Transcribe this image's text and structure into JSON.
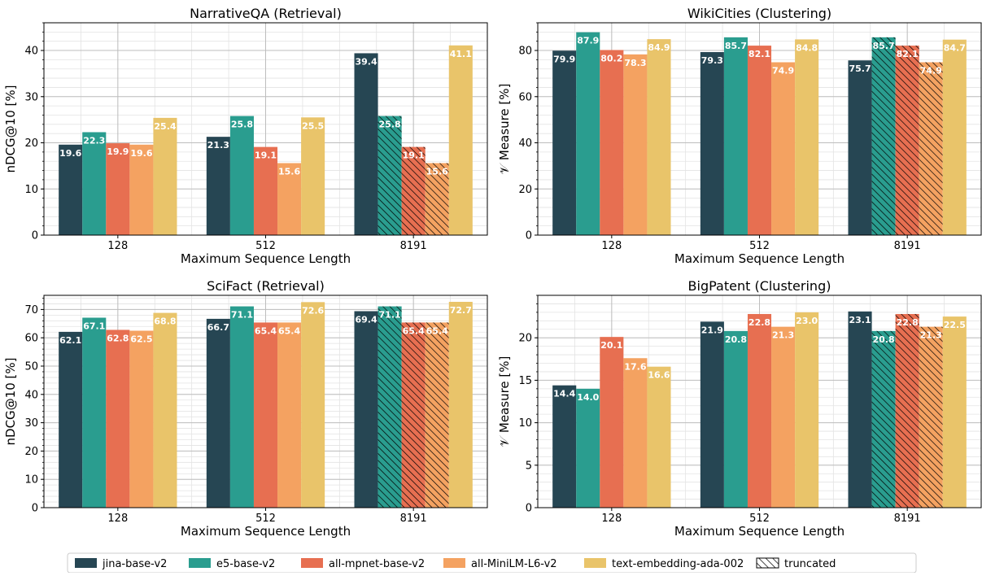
{
  "colors": {
    "jina-base-v2": "#264653",
    "e5-base-v2": "#2a9d8f",
    "all-mpnet-base-v2": "#e76f51",
    "all-MiniLM-L6-v2": "#f4a261",
    "text-embedding-ada-002": "#e9c46a",
    "grid_major": "#bdbdbd",
    "grid_minor": "#e3e3e3",
    "axis": "#000000"
  },
  "legend": {
    "position": "bottom-center",
    "items": [
      {
        "label": "jina-base-v2",
        "color_key": "jina-base-v2"
      },
      {
        "label": "e5-base-v2",
        "color_key": "e5-base-v2"
      },
      {
        "label": "all-mpnet-base-v2",
        "color_key": "all-mpnet-base-v2"
      },
      {
        "label": "all-MiniLM-L6-v2",
        "color_key": "all-MiniLM-L6-v2"
      },
      {
        "label": "text-embedding-ada-002",
        "color_key": "text-embedding-ada-002"
      },
      {
        "label": "truncated",
        "hatched": true
      }
    ]
  },
  "chart_data": [
    {
      "type": "bar",
      "title": "NarrativeQA (Retrieval)",
      "xlabel": "Maximum Sequence Length",
      "ylabel": "nDCG@10 [%]",
      "ylim": [
        0,
        46
      ],
      "yticks": [
        0,
        10,
        20,
        30,
        40
      ],
      "grid": true,
      "categories": [
        "128",
        "512",
        "8191"
      ],
      "series": [
        {
          "name": "jina-base-v2",
          "values": [
            19.6,
            21.3,
            39.4
          ],
          "labels": [
            "19.6",
            "21.3",
            "39.4"
          ],
          "truncated": [
            false,
            false,
            false
          ]
        },
        {
          "name": "e5-base-v2",
          "values": [
            22.3,
            25.8,
            25.8
          ],
          "labels": [
            "22.3",
            "25.8",
            "25.8"
          ],
          "truncated": [
            false,
            false,
            true
          ]
        },
        {
          "name": "all-mpnet-base-v2",
          "values": [
            19.9,
            19.1,
            19.1
          ],
          "labels": [
            "19.9",
            "19.1",
            "19.1"
          ],
          "truncated": [
            false,
            false,
            true
          ]
        },
        {
          "name": "all-MiniLM-L6-v2",
          "values": [
            19.6,
            15.6,
            15.6
          ],
          "labels": [
            "19.6",
            "15.6",
            "15.6"
          ],
          "truncated": [
            false,
            false,
            true
          ]
        },
        {
          "name": "text-embedding-ada-002",
          "values": [
            25.4,
            25.5,
            41.1
          ],
          "labels": [
            "25.4",
            "25.5",
            "41.1"
          ],
          "truncated": [
            false,
            false,
            false
          ]
        }
      ]
    },
    {
      "type": "bar",
      "title": "WikiCities (Clustering)",
      "xlabel": "Maximum Sequence Length",
      "ylabel": "𝒱 Measure [%]",
      "ylim": [
        0,
        92
      ],
      "yticks": [
        0,
        20,
        40,
        60,
        80
      ],
      "grid": true,
      "categories": [
        "128",
        "512",
        "8191"
      ],
      "series": [
        {
          "name": "jina-base-v2",
          "values": [
            79.9,
            79.3,
            75.7
          ],
          "labels": [
            "79.9",
            "79.3",
            "75.7"
          ],
          "truncated": [
            false,
            false,
            false
          ]
        },
        {
          "name": "e5-base-v2",
          "values": [
            87.9,
            85.7,
            85.7
          ],
          "labels": [
            "87.9",
            "85.7",
            "85.7"
          ],
          "truncated": [
            false,
            false,
            true
          ]
        },
        {
          "name": "all-mpnet-base-v2",
          "values": [
            80.2,
            82.1,
            82.1
          ],
          "labels": [
            "80.2",
            "82.1",
            "82.1"
          ],
          "truncated": [
            false,
            false,
            true
          ]
        },
        {
          "name": "all-MiniLM-L6-v2",
          "values": [
            78.3,
            74.9,
            74.9
          ],
          "labels": [
            "78.3",
            "74.9",
            "74.9"
          ],
          "truncated": [
            false,
            false,
            true
          ]
        },
        {
          "name": "text-embedding-ada-002",
          "values": [
            84.9,
            84.8,
            84.7
          ],
          "labels": [
            "84.9",
            "84.8",
            "84.7"
          ],
          "truncated": [
            false,
            false,
            false
          ]
        }
      ]
    },
    {
      "type": "bar",
      "title": "SciFact (Retrieval)",
      "xlabel": "Maximum Sequence Length",
      "ylabel": "nDCG@10 [%]",
      "ylim": [
        0,
        75
      ],
      "yticks": [
        0,
        10,
        20,
        30,
        40,
        50,
        60,
        70
      ],
      "grid": true,
      "categories": [
        "128",
        "512",
        "8191"
      ],
      "series": [
        {
          "name": "jina-base-v2",
          "values": [
            62.1,
            66.7,
            69.4
          ],
          "labels": [
            "62.1",
            "66.7",
            "69.4"
          ],
          "truncated": [
            false,
            false,
            false
          ]
        },
        {
          "name": "e5-base-v2",
          "values": [
            67.1,
            71.1,
            71.1
          ],
          "labels": [
            "67.1",
            "71.1",
            "71.1"
          ],
          "truncated": [
            false,
            false,
            true
          ]
        },
        {
          "name": "all-mpnet-base-v2",
          "values": [
            62.8,
            65.4,
            65.4
          ],
          "labels": [
            "62.8",
            "65.4",
            "65.4"
          ],
          "truncated": [
            false,
            false,
            true
          ]
        },
        {
          "name": "all-MiniLM-L6-v2",
          "values": [
            62.5,
            65.4,
            65.4
          ],
          "labels": [
            "62.5",
            "65.4",
            "65.4"
          ],
          "truncated": [
            false,
            false,
            true
          ]
        },
        {
          "name": "text-embedding-ada-002",
          "values": [
            68.8,
            72.6,
            72.7
          ],
          "labels": [
            "68.8",
            "72.6",
            "72.7"
          ],
          "truncated": [
            false,
            false,
            false
          ]
        }
      ]
    },
    {
      "type": "bar",
      "title": "BigPatent (Clustering)",
      "xlabel": "Maximum Sequence Length",
      "ylabel": "𝒱 Measure [%]",
      "ylim": [
        0,
        25
      ],
      "yticks": [
        0,
        5,
        10,
        15,
        20
      ],
      "grid": true,
      "categories": [
        "128",
        "512",
        "8191"
      ],
      "series": [
        {
          "name": "jina-base-v2",
          "values": [
            14.4,
            21.9,
            23.1
          ],
          "labels": [
            "14.4",
            "21.9",
            "23.1"
          ],
          "truncated": [
            false,
            false,
            false
          ]
        },
        {
          "name": "e5-base-v2",
          "values": [
            14.0,
            20.8,
            20.8
          ],
          "labels": [
            "14.0",
            "20.8",
            "20.8"
          ],
          "truncated": [
            false,
            false,
            true
          ]
        },
        {
          "name": "all-mpnet-base-v2",
          "values": [
            20.1,
            22.8,
            22.8
          ],
          "labels": [
            "20.1",
            "22.8",
            "22.8"
          ],
          "truncated": [
            false,
            false,
            true
          ]
        },
        {
          "name": "all-MiniLM-L6-v2",
          "values": [
            17.6,
            21.3,
            21.3
          ],
          "labels": [
            "17.6",
            "21.3",
            "21.3"
          ],
          "truncated": [
            false,
            false,
            true
          ]
        },
        {
          "name": "text-embedding-ada-002",
          "values": [
            16.6,
            23.0,
            22.5
          ],
          "labels": [
            "16.6",
            "23.0",
            "22.5"
          ],
          "truncated": [
            false,
            false,
            false
          ]
        }
      ]
    }
  ]
}
